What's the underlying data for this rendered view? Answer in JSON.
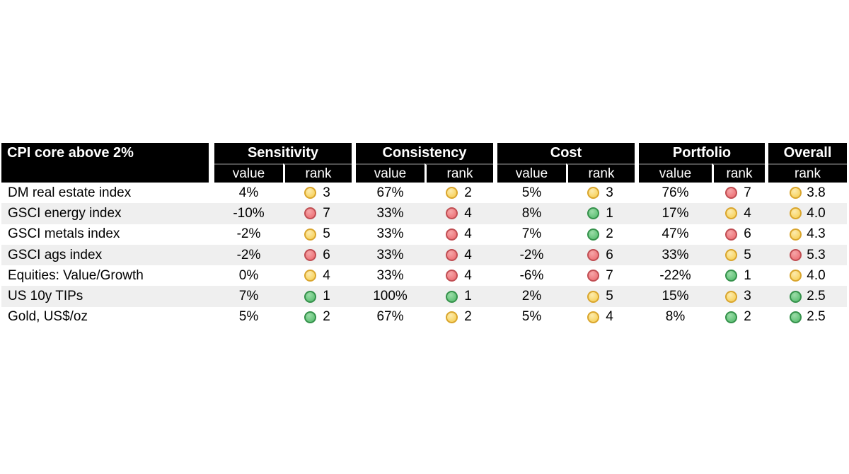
{
  "title": "CPI core above 2%",
  "colors": {
    "header_bg": "#000000",
    "header_text": "#ffffff",
    "row_stripe": "#efefef",
    "body_text": "#000000",
    "dots": {
      "green": {
        "fill": "#66c47b",
        "light": "#9cdca8",
        "border": "#35914b"
      },
      "yellow": {
        "fill": "#f8d567",
        "light": "#fcebae",
        "border": "#d9a52d"
      },
      "red": {
        "fill": "#ef797e",
        "light": "#f5a6a8",
        "border": "#c04e53"
      }
    }
  },
  "chart_data": {
    "type": "table",
    "title": "CPI core above 2%",
    "corner_label": "CPI core above 2%",
    "sections": [
      "Sensitivity",
      "Consistency",
      "Cost",
      "Portfolio",
      "Overall"
    ],
    "sub_headers": [
      "value",
      "rank",
      "value",
      "rank",
      "value",
      "rank",
      "value",
      "rank",
      "rank"
    ],
    "rows": [
      {
        "label": "DM real estate index",
        "metrics": [
          {
            "group": "Sensitivity",
            "value": "4%",
            "dot": "yellow",
            "rank": "3"
          },
          {
            "group": "Consistency",
            "value": "67%",
            "dot": "yellow",
            "rank": "2"
          },
          {
            "group": "Cost",
            "value": "5%",
            "dot": "yellow",
            "rank": "3"
          },
          {
            "group": "Portfolio",
            "value": "76%",
            "dot": "red",
            "rank": "7"
          }
        ],
        "overall": {
          "dot": "yellow",
          "rank": "3.8"
        }
      },
      {
        "label": "GSCI energy index",
        "metrics": [
          {
            "group": "Sensitivity",
            "value": "-10%",
            "dot": "red",
            "rank": "7"
          },
          {
            "group": "Consistency",
            "value": "33%",
            "dot": "red",
            "rank": "4"
          },
          {
            "group": "Cost",
            "value": "8%",
            "dot": "green",
            "rank": "1"
          },
          {
            "group": "Portfolio",
            "value": "17%",
            "dot": "yellow",
            "rank": "4"
          }
        ],
        "overall": {
          "dot": "yellow",
          "rank": "4.0"
        }
      },
      {
        "label": "GSCI metals index",
        "metrics": [
          {
            "group": "Sensitivity",
            "value": "-2%",
            "dot": "yellow",
            "rank": "5"
          },
          {
            "group": "Consistency",
            "value": "33%",
            "dot": "red",
            "rank": "4"
          },
          {
            "group": "Cost",
            "value": "7%",
            "dot": "green",
            "rank": "2"
          },
          {
            "group": "Portfolio",
            "value": "47%",
            "dot": "red",
            "rank": "6"
          }
        ],
        "overall": {
          "dot": "yellow",
          "rank": "4.3"
        }
      },
      {
        "label": "GSCI ags index",
        "metrics": [
          {
            "group": "Sensitivity",
            "value": "-2%",
            "dot": "red",
            "rank": "6"
          },
          {
            "group": "Consistency",
            "value": "33%",
            "dot": "red",
            "rank": "4"
          },
          {
            "group": "Cost",
            "value": "-2%",
            "dot": "red",
            "rank": "6"
          },
          {
            "group": "Portfolio",
            "value": "33%",
            "dot": "yellow",
            "rank": "5"
          }
        ],
        "overall": {
          "dot": "red",
          "rank": "5.3"
        }
      },
      {
        "label": "Equities: Value/Growth",
        "metrics": [
          {
            "group": "Sensitivity",
            "value": "0%",
            "dot": "yellow",
            "rank": "4"
          },
          {
            "group": "Consistency",
            "value": "33%",
            "dot": "red",
            "rank": "4"
          },
          {
            "group": "Cost",
            "value": "-6%",
            "dot": "red",
            "rank": "7"
          },
          {
            "group": "Portfolio",
            "value": "-22%",
            "dot": "green",
            "rank": "1"
          }
        ],
        "overall": {
          "dot": "yellow",
          "rank": "4.0"
        }
      },
      {
        "label": "US 10y TIPs",
        "metrics": [
          {
            "group": "Sensitivity",
            "value": "7%",
            "dot": "green",
            "rank": "1"
          },
          {
            "group": "Consistency",
            "value": "100%",
            "dot": "green",
            "rank": "1"
          },
          {
            "group": "Cost",
            "value": "2%",
            "dot": "yellow",
            "rank": "5"
          },
          {
            "group": "Portfolio",
            "value": "15%",
            "dot": "yellow",
            "rank": "3"
          }
        ],
        "overall": {
          "dot": "green",
          "rank": "2.5"
        }
      },
      {
        "label": "Gold, US$/oz",
        "metrics": [
          {
            "group": "Sensitivity",
            "value": "5%",
            "dot": "green",
            "rank": "2"
          },
          {
            "group": "Consistency",
            "value": "67%",
            "dot": "yellow",
            "rank": "2"
          },
          {
            "group": "Cost",
            "value": "5%",
            "dot": "yellow",
            "rank": "4"
          },
          {
            "group": "Portfolio",
            "value": "8%",
            "dot": "green",
            "rank": "2"
          }
        ],
        "overall": {
          "dot": "green",
          "rank": "2.5"
        }
      }
    ]
  }
}
